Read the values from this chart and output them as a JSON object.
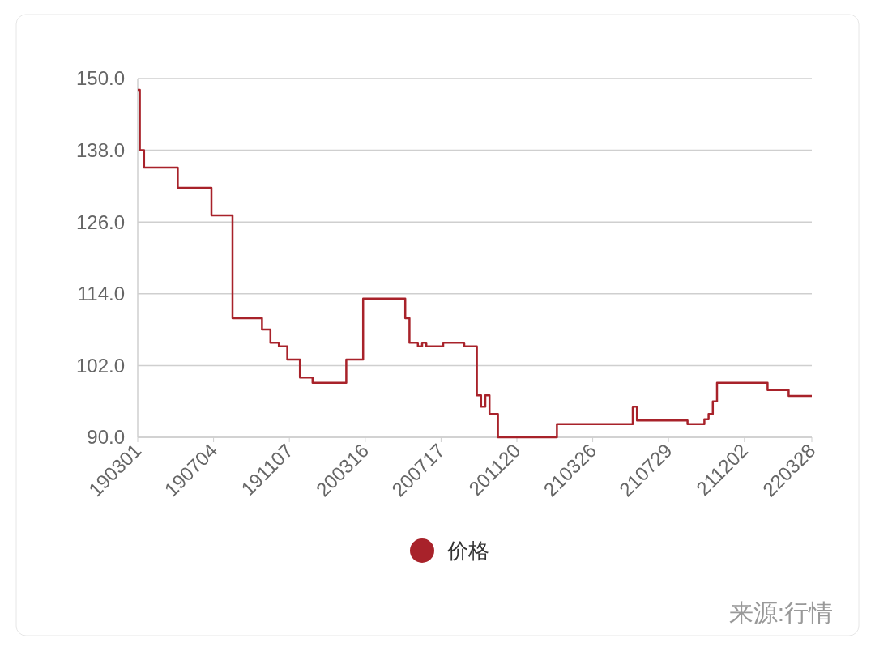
{
  "chart_data": {
    "type": "step",
    "categories": [
      "190301",
      null,
      null,
      null,
      null,
      null,
      null,
      null,
      null,
      null,
      null,
      null,
      null,
      null,
      null,
      null,
      null,
      null,
      "190704",
      null,
      null,
      null,
      null,
      null,
      null,
      null,
      null,
      null,
      null,
      null,
      null,
      null,
      null,
      null,
      null,
      null,
      "191107",
      null,
      null,
      null,
      null,
      null,
      null,
      null,
      null,
      null,
      null,
      null,
      null,
      null,
      null,
      null,
      null,
      null,
      "200316",
      null,
      null,
      null,
      null,
      null,
      null,
      null,
      null,
      null,
      null,
      null,
      null,
      null,
      null,
      null,
      null,
      null,
      "200717",
      null,
      null,
      null,
      null,
      null,
      null,
      null,
      null,
      null,
      null,
      null,
      null,
      null,
      null,
      null,
      null,
      null,
      "201120",
      null,
      null,
      null,
      null,
      null,
      null,
      null,
      null,
      null,
      null,
      null,
      null,
      null,
      null,
      null,
      null,
      null,
      "210326",
      null,
      null,
      null,
      null,
      null,
      null,
      null,
      null,
      null,
      null,
      null,
      null,
      null,
      null,
      null,
      null,
      null,
      "210729",
      null,
      null,
      null,
      null,
      null,
      null,
      null,
      null,
      null,
      null,
      null,
      null,
      null,
      null,
      null,
      null,
      null,
      "211202",
      null,
      null,
      null,
      null,
      null,
      null,
      null,
      null,
      null,
      null,
      null,
      null,
      null,
      null,
      null,
      "220328"
    ],
    "series": [
      {
        "name": "价格",
        "color": "#a8222a",
        "values": [
          148.1,
          138.0,
          135.1,
          135.1,
          135.1,
          135.1,
          135.1,
          135.1,
          135.1,
          135.1,
          131.7,
          131.7,
          131.7,
          131.7,
          131.7,
          131.7,
          131.7,
          131.7,
          127.1,
          127.1,
          127.1,
          127.1,
          127.1,
          109.9,
          109.9,
          109.9,
          109.9,
          109.9,
          109.9,
          109.9,
          108.0,
          108.0,
          105.8,
          105.8,
          105.2,
          105.2,
          103.0,
          103.0,
          103.0,
          100.0,
          100.0,
          100.0,
          99.1,
          99.1,
          99.1,
          99.1,
          99.1,
          99.1,
          99.1,
          99.1,
          103.0,
          103.0,
          103.0,
          103.0,
          113.2,
          113.2,
          113.2,
          113.2,
          113.2,
          113.2,
          113.2,
          113.2,
          113.2,
          113.2,
          109.9,
          105.8,
          105.8,
          105.2,
          105.8,
          105.2,
          105.2,
          105.2,
          105.2,
          105.8,
          105.8,
          105.8,
          105.8,
          105.8,
          105.2,
          105.2,
          105.2,
          97.0,
          95.1,
          97.0,
          93.9,
          93.9,
          90.0,
          90.0,
          90.0,
          90.0,
          90.0,
          90.0,
          90.0,
          90.0,
          90.0,
          90.0,
          90.0,
          90.0,
          90.0,
          90.0,
          92.2,
          92.2,
          92.2,
          92.2,
          92.2,
          92.2,
          92.2,
          92.2,
          92.2,
          92.2,
          92.2,
          92.2,
          92.2,
          92.2,
          92.2,
          92.2,
          92.2,
          92.2,
          95.1,
          92.8,
          92.8,
          92.8,
          92.8,
          92.8,
          92.8,
          92.8,
          92.8,
          92.8,
          92.8,
          92.8,
          92.8,
          92.2,
          92.2,
          92.2,
          92.2,
          93.0,
          93.9,
          96.0,
          99.1,
          99.1,
          99.1,
          99.1,
          99.1,
          99.1,
          99.1,
          99.1,
          99.1,
          99.1,
          99.1,
          99.1,
          97.9,
          97.9,
          97.9,
          97.9,
          97.9,
          96.9,
          96.9,
          96.9,
          96.9,
          96.9,
          96.9
        ]
      }
    ],
    "ylim": [
      90,
      150
    ],
    "yticks": [
      {
        "value": 90,
        "label": "90.0"
      },
      {
        "value": 102,
        "label": "102.0"
      },
      {
        "value": 114,
        "label": "114.0"
      },
      {
        "value": 126,
        "label": "126.0"
      },
      {
        "value": 138,
        "label": "138.0"
      },
      {
        "value": 150,
        "label": "150.0"
      }
    ],
    "grid": "y",
    "legend": "bottom",
    "marker": "none",
    "line_style": "solid",
    "annotations": [
      "来源:行情"
    ]
  }
}
